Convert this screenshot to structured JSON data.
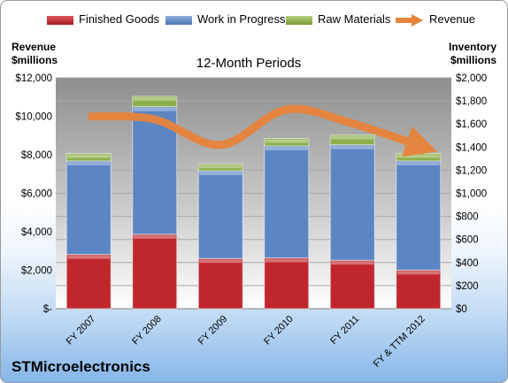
{
  "colors": {
    "finished_goods": "#c0272d",
    "work_in_progress": "#5b85c3",
    "raw_materials": "#8db04b",
    "revenue": "#e8833a"
  },
  "legend": {
    "finished_goods": "Finished Goods",
    "work_in_progress": "Work in Progress",
    "raw_materials": "Raw Materials",
    "revenue": "Revenue"
  },
  "axes": {
    "left_title_line1": "Revenue",
    "left_title_line2": "$millions",
    "right_title_line1": "Inventory",
    "right_title_line2": "$millions"
  },
  "plot_title": "12-Month Periods",
  "company": "STMicroelectronics",
  "chart_data": {
    "type": "bar",
    "stacked": true,
    "title": "12-Month Periods",
    "categories": [
      "FY 2007",
      "FY 2008",
      "FY 2009",
      "FY 2010",
      "FY 2011",
      "FY & TTM 2012"
    ],
    "series": [
      {
        "name": "Finished Goods",
        "axis": "right",
        "values": [
          470,
          645,
          435,
          440,
          420,
          335
        ]
      },
      {
        "name": "Work in Progress",
        "axis": "right",
        "values": [
          810,
          1105,
          760,
          970,
          1000,
          945
        ]
      },
      {
        "name": "Raw Materials",
        "axis": "right",
        "values": [
          65,
          90,
          60,
          65,
          85,
          65
        ]
      },
      {
        "name": "Revenue",
        "axis": "left",
        "type": "line",
        "values": [
          10000,
          9840,
          8510,
          10350,
          9630,
          8490
        ]
      }
    ],
    "left_axis": {
      "label": "Revenue $millions",
      "ylim": [
        0,
        12000
      ],
      "ticks": [
        "$-",
        "$2,000",
        "$4,000",
        "$6,000",
        "$8,000",
        "$10,000",
        "$12,000"
      ]
    },
    "right_axis": {
      "label": "Inventory $millions",
      "ylim": [
        0,
        2000
      ],
      "ticks": [
        "$0",
        "$200",
        "$400",
        "$600",
        "$800",
        "$1,000",
        "$1,200",
        "$1,400",
        "$1,600",
        "$1,800",
        "$2,000"
      ]
    },
    "grid": true,
    "legend_position": "top"
  }
}
